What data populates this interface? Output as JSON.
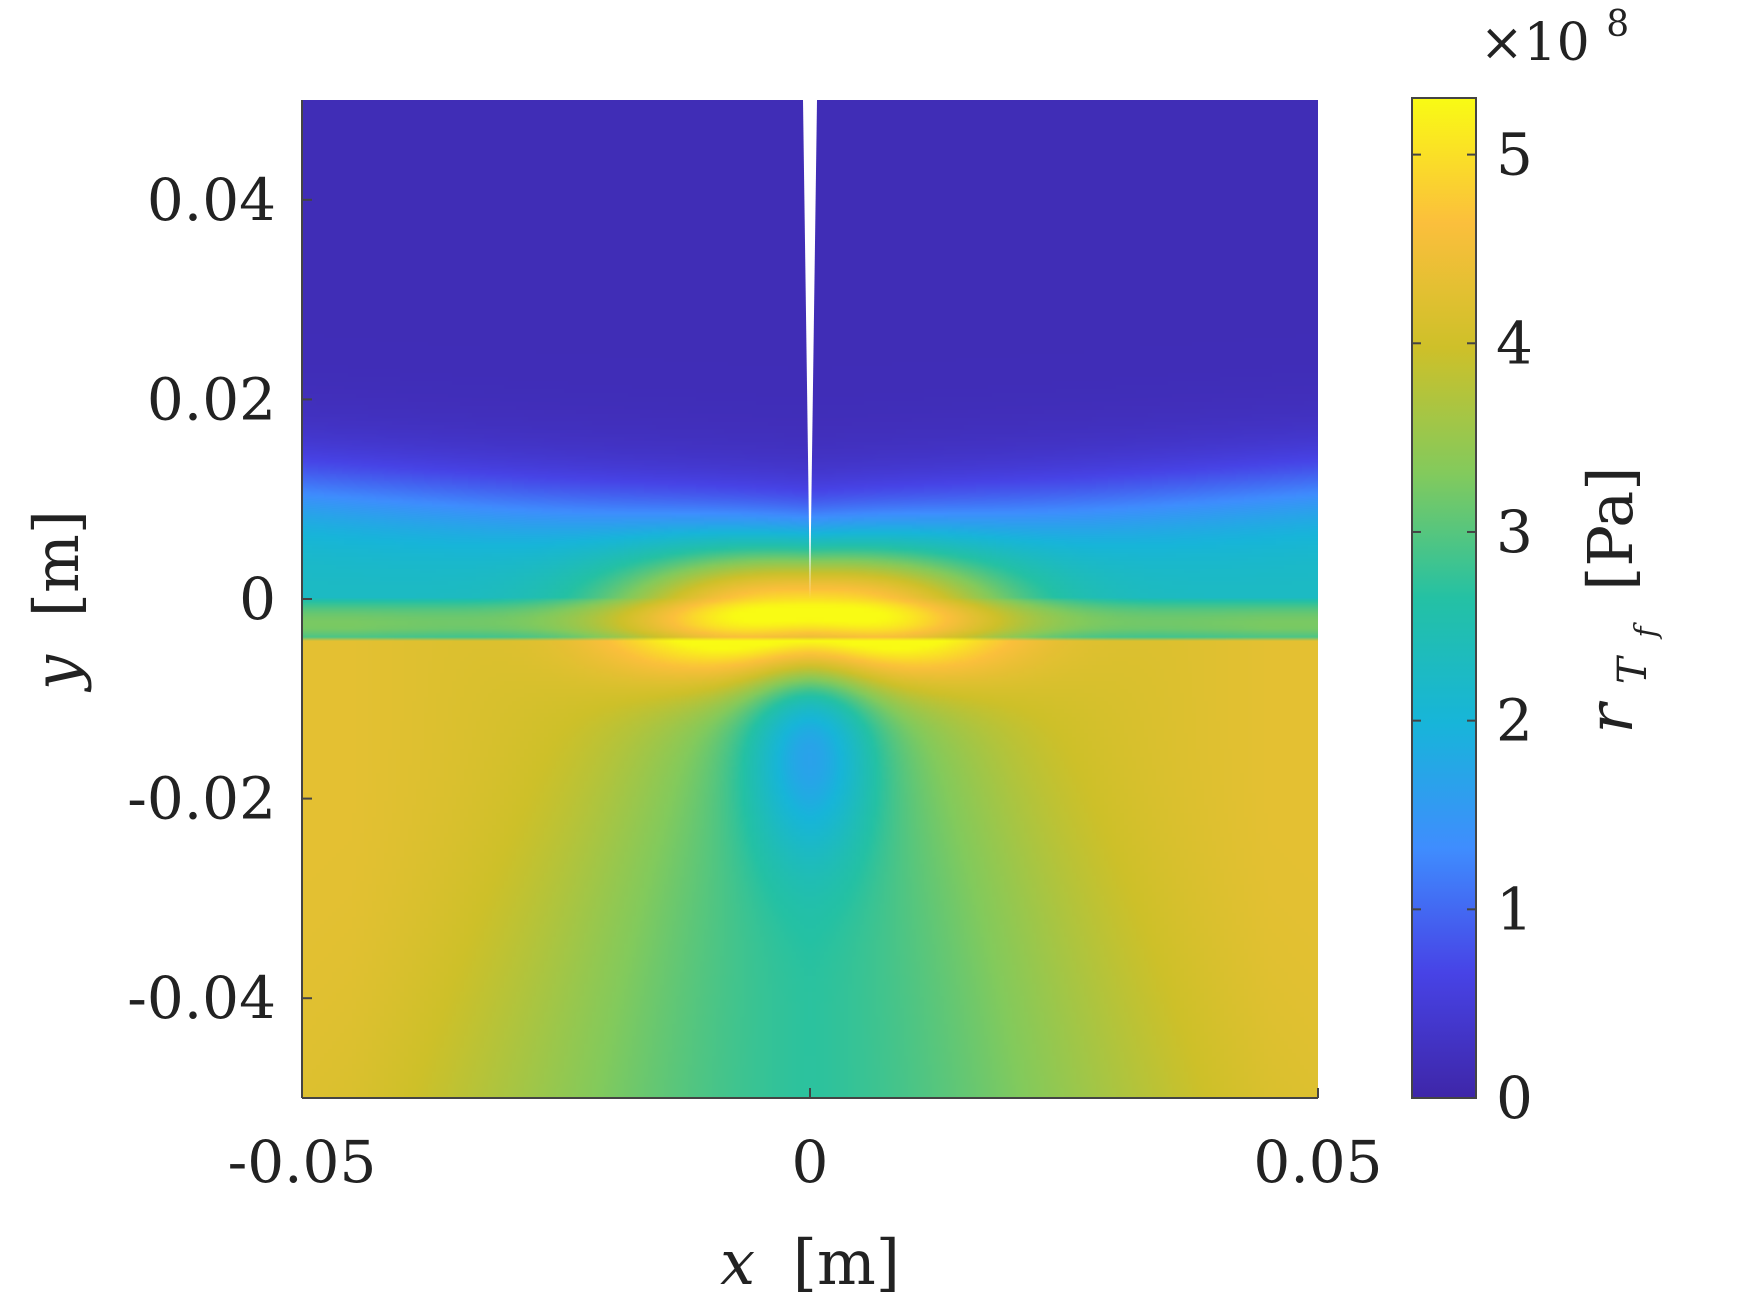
{
  "chart_data": {
    "type": "heatmap",
    "title": "",
    "x_axis": {
      "symbol": "x",
      "unit": "[m]",
      "range": [
        -0.05,
        0.05
      ],
      "ticks": [
        -0.05,
        0,
        0.05
      ],
      "tick_labels": [
        "-0.05",
        "0",
        "0.05"
      ]
    },
    "y_axis": {
      "symbol": "y",
      "unit": "[m]",
      "range": [
        -0.05,
        0.05
      ],
      "ticks": [
        0.04,
        0.02,
        0,
        -0.02,
        -0.04
      ],
      "tick_labels": [
        "0.04",
        "0.02",
        "0",
        "-0.02",
        "-0.04"
      ]
    },
    "colorbar": {
      "symbol": "r",
      "subscript": "T",
      "subsubscript": "f",
      "unit": "[Pa]",
      "exponent_label": "×10",
      "exponent_power": "8",
      "range": [
        0,
        5.3
      ],
      "ticks": [
        0,
        1,
        2,
        3,
        4,
        5
      ],
      "tick_labels": [
        "0",
        "1",
        "2",
        "3",
        "4",
        "5"
      ],
      "colormap": "parula",
      "colormap_stops": [
        "#3e26a8",
        "#4743e6",
        "#3f8dfe",
        "#17b5d9",
        "#24c1a4",
        "#83ca5c",
        "#cec029",
        "#fbbf3c",
        "#f9fb14"
      ]
    },
    "grid": false,
    "legend": "none",
    "features": {
      "crack": {
        "x": 0,
        "y_from": 0,
        "y_to": 0.05
      },
      "hot_lobes": [
        {
          "x": -0.007,
          "y": 0.0,
          "value": 5.0
        },
        {
          "x": 0.007,
          "y": 0.0,
          "value": 5.0
        }
      ],
      "low_region_above": {
        "y_min": 0.02,
        "value": 0.1
      },
      "trough_below_tip": {
        "x": 0,
        "y": -0.015,
        "value": 2.3
      }
    }
  }
}
